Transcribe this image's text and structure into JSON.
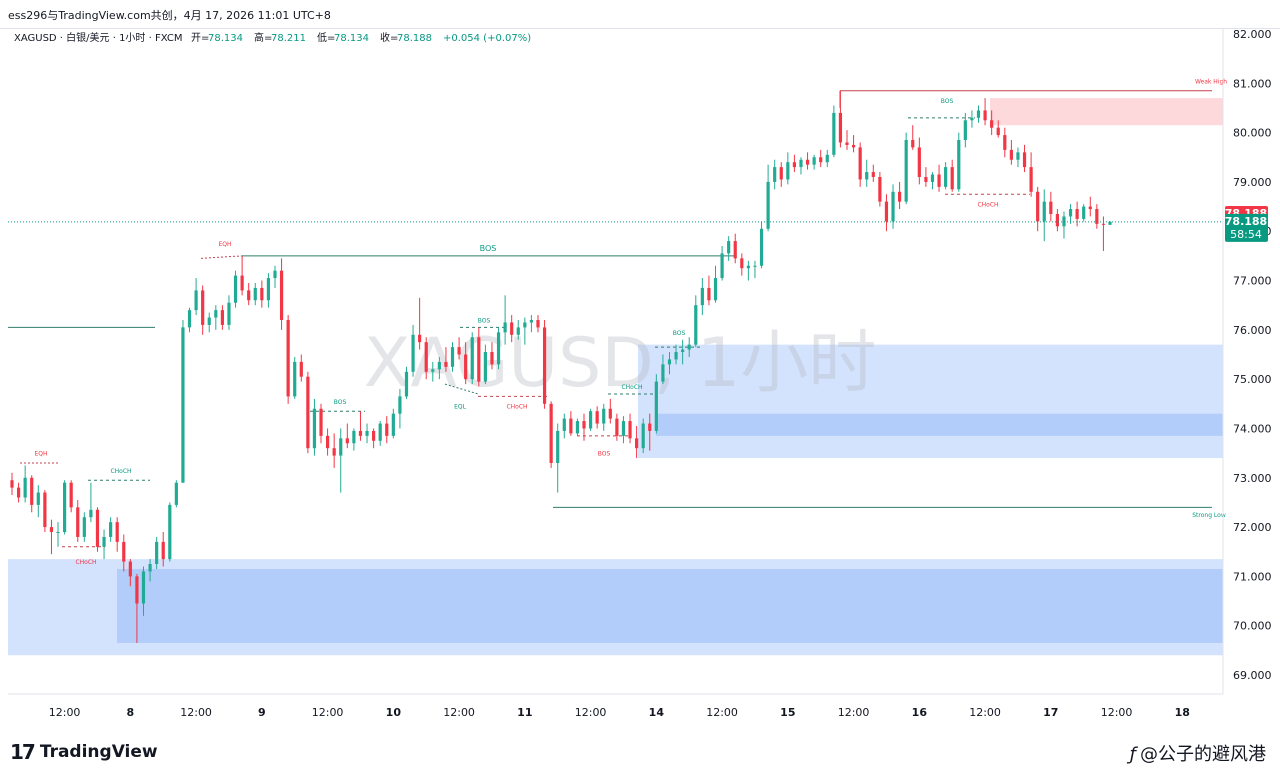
{
  "header": {
    "publish_line": "ess296与TradingView.com共创，4月 17, 2026 11:01 UTC+8",
    "symbol_line": "XAGUSD · 白银/美元 · 1小时 · FXCM",
    "ohlc": [
      {
        "label": "开=",
        "value": "78.134"
      },
      {
        "label": "高=",
        "value": "78.211"
      },
      {
        "label": "低=",
        "value": "78.134"
      },
      {
        "label": "收=",
        "value": "78.188"
      }
    ],
    "change": "+0.054 (+0.07%)"
  },
  "watermark": "XAGUSD, 1小时",
  "colors": {
    "up": "#22ab94",
    "down": "#f23645",
    "up_wick": "#22ab94",
    "down_wick": "#f23645",
    "bull_text": "#089981",
    "bear_text": "#f23645",
    "zone_light": "#d4e3fd",
    "zone_dark": "#b2cdf9",
    "supply": "#fdd9dc",
    "price_tag": "#f23645",
    "last_tag": "#089981"
  },
  "chart_data": {
    "type": "candlestick",
    "symbol": "XAGUSD",
    "timeframe": "1H",
    "ylim": [
      68.6,
      82.3
    ],
    "y_ticks": [
      "82.000",
      "81.000",
      "80.000",
      "79.000",
      "78.000",
      "77.000",
      "76.000",
      "75.000",
      "74.000",
      "73.000",
      "72.000",
      "71.000",
      "70.000",
      "69.000"
    ],
    "x_ticks": [
      {
        "label": "12:00",
        "t": 8
      },
      {
        "label": "8",
        "t": 18
      },
      {
        "label": "12:00",
        "t": 28
      },
      {
        "label": "9",
        "t": 38
      },
      {
        "label": "12:00",
        "t": 48
      },
      {
        "label": "10",
        "t": 58
      },
      {
        "label": "12:00",
        "t": 68
      },
      {
        "label": "11",
        "t": 78
      },
      {
        "label": "12:00",
        "t": 88
      },
      {
        "label": "14",
        "t": 98
      },
      {
        "label": "12:00",
        "t": 108
      },
      {
        "label": "15",
        "t": 118
      },
      {
        "label": "12:00",
        "t": 128
      },
      {
        "label": "16",
        "t": 138
      },
      {
        "label": "12:00",
        "t": 148
      },
      {
        "label": "17",
        "t": 158
      },
      {
        "label": "12:00",
        "t": 168
      },
      {
        "label": "18",
        "t": 178
      }
    ],
    "last_price": "78.188",
    "countdown": "58:54",
    "close_price": "78.188",
    "candles": [
      [
        72.95,
        73.1,
        72.65,
        72.8
      ],
      [
        72.8,
        72.9,
        72.5,
        72.6
      ],
      [
        72.6,
        73.25,
        72.5,
        73.0
      ],
      [
        73.0,
        73.05,
        72.3,
        72.45
      ],
      [
        72.45,
        72.85,
        72.2,
        72.7
      ],
      [
        72.7,
        72.75,
        71.9,
        72.0
      ],
      [
        72.0,
        72.15,
        71.45,
        71.9
      ],
      [
        71.9,
        72.1,
        71.6,
        71.9
      ],
      [
        71.9,
        72.95,
        71.85,
        72.9
      ],
      [
        72.9,
        72.95,
        72.3,
        72.4
      ],
      [
        72.4,
        72.55,
        71.7,
        71.8
      ],
      [
        71.8,
        72.3,
        71.7,
        72.2
      ],
      [
        72.2,
        72.9,
        72.1,
        72.35
      ],
      [
        72.35,
        72.4,
        71.5,
        71.6
      ],
      [
        71.6,
        71.95,
        71.35,
        71.8
      ],
      [
        71.8,
        72.2,
        71.7,
        72.1
      ],
      [
        72.1,
        72.2,
        71.5,
        71.7
      ],
      [
        71.7,
        71.85,
        71.1,
        71.3
      ],
      [
        71.3,
        71.35,
        70.8,
        71.0
      ],
      [
        71.0,
        71.05,
        69.65,
        70.45
      ],
      [
        70.45,
        71.2,
        70.2,
        71.1
      ],
      [
        71.1,
        71.35,
        70.9,
        71.25
      ],
      [
        71.25,
        71.8,
        71.15,
        71.7
      ],
      [
        71.7,
        71.9,
        71.2,
        71.35
      ],
      [
        71.35,
        72.5,
        71.3,
        72.45
      ],
      [
        72.45,
        72.95,
        72.4,
        72.9
      ],
      [
        72.9,
        76.2,
        72.9,
        76.05
      ],
      [
        76.05,
        76.45,
        75.95,
        76.4
      ],
      [
        76.4,
        77.05,
        76.3,
        76.8
      ],
      [
        76.8,
        76.9,
        75.9,
        76.1
      ],
      [
        76.1,
        76.35,
        75.95,
        76.25
      ],
      [
        76.25,
        76.5,
        76.0,
        76.4
      ],
      [
        76.4,
        76.5,
        76.0,
        76.1
      ],
      [
        76.1,
        76.7,
        76.0,
        76.55
      ],
      [
        76.55,
        77.2,
        76.45,
        77.1
      ],
      [
        77.1,
        77.5,
        76.7,
        76.8
      ],
      [
        76.8,
        76.95,
        76.5,
        76.6
      ],
      [
        76.6,
        76.95,
        76.5,
        76.85
      ],
      [
        76.85,
        77.0,
        76.45,
        76.6
      ],
      [
        76.6,
        77.15,
        76.45,
        77.05
      ],
      [
        77.05,
        77.3,
        76.85,
        77.2
      ],
      [
        77.2,
        77.45,
        76.0,
        76.2
      ],
      [
        76.2,
        76.3,
        74.5,
        74.65
      ],
      [
        74.65,
        75.45,
        74.6,
        75.35
      ],
      [
        75.35,
        75.5,
        74.95,
        75.05
      ],
      [
        75.05,
        75.15,
        73.5,
        73.6
      ],
      [
        73.6,
        74.6,
        73.45,
        74.4
      ],
      [
        74.4,
        74.5,
        73.7,
        73.85
      ],
      [
        73.85,
        74.0,
        73.45,
        73.6
      ],
      [
        73.6,
        73.9,
        73.2,
        73.45
      ],
      [
        73.45,
        74.0,
        72.7,
        73.8
      ],
      [
        73.8,
        74.1,
        73.6,
        73.7
      ],
      [
        73.7,
        74.0,
        73.55,
        73.95
      ],
      [
        73.95,
        74.35,
        73.75,
        73.85
      ],
      [
        73.85,
        74.1,
        73.7,
        73.95
      ],
      [
        73.95,
        74.0,
        73.6,
        73.75
      ],
      [
        73.75,
        74.15,
        73.65,
        74.1
      ],
      [
        74.1,
        74.25,
        73.7,
        73.85
      ],
      [
        73.85,
        74.4,
        73.8,
        74.3
      ],
      [
        74.3,
        74.8,
        74.0,
        74.65
      ],
      [
        74.65,
        75.25,
        74.6,
        75.15
      ],
      [
        75.15,
        76.1,
        75.05,
        75.9
      ],
      [
        75.9,
        76.65,
        75.6,
        75.75
      ],
      [
        75.75,
        75.85,
        75.0,
        75.15
      ],
      [
        75.15,
        75.35,
        74.95,
        75.2
      ],
      [
        75.2,
        75.45,
        75.0,
        75.35
      ],
      [
        75.35,
        75.65,
        75.15,
        75.25
      ],
      [
        75.25,
        75.75,
        75.15,
        75.65
      ],
      [
        75.65,
        75.85,
        75.4,
        75.5
      ],
      [
        75.5,
        75.75,
        74.9,
        75.0
      ],
      [
        75.0,
        75.95,
        74.9,
        75.85
      ],
      [
        75.85,
        76.05,
        74.85,
        74.95
      ],
      [
        74.95,
        75.7,
        74.9,
        75.55
      ],
      [
        75.55,
        75.75,
        75.2,
        75.3
      ],
      [
        75.3,
        76.05,
        75.2,
        75.95
      ],
      [
        75.95,
        76.7,
        75.7,
        76.15
      ],
      [
        76.15,
        76.3,
        75.75,
        75.9
      ],
      [
        75.9,
        76.2,
        75.8,
        76.05
      ],
      [
        76.05,
        76.25,
        75.7,
        76.15
      ],
      [
        76.15,
        76.3,
        75.95,
        76.2
      ],
      [
        76.2,
        76.3,
        75.95,
        76.05
      ],
      [
        76.05,
        76.2,
        74.4,
        74.5
      ],
      [
        74.5,
        74.55,
        73.2,
        73.3
      ],
      [
        73.3,
        74.1,
        72.7,
        73.95
      ],
      [
        73.95,
        74.3,
        73.8,
        74.2
      ],
      [
        74.2,
        74.35,
        73.85,
        73.9
      ],
      [
        73.9,
        74.2,
        73.85,
        74.15
      ],
      [
        74.15,
        74.3,
        73.75,
        74.0
      ],
      [
        74.0,
        74.4,
        73.95,
        74.35
      ],
      [
        74.35,
        74.45,
        74.0,
        74.1
      ],
      [
        74.1,
        74.5,
        73.95,
        74.4
      ],
      [
        74.4,
        74.6,
        74.1,
        74.2
      ],
      [
        74.2,
        74.3,
        73.75,
        73.85
      ],
      [
        73.85,
        74.25,
        73.7,
        74.15
      ],
      [
        74.15,
        74.3,
        73.7,
        73.8
      ],
      [
        73.8,
        74.05,
        73.4,
        73.6
      ],
      [
        73.6,
        74.2,
        73.5,
        74.1
      ],
      [
        74.1,
        74.3,
        73.55,
        73.95
      ],
      [
        73.95,
        75.1,
        73.9,
        74.95
      ],
      [
        74.95,
        75.5,
        74.9,
        75.3
      ],
      [
        75.3,
        75.55,
        75.1,
        75.4
      ],
      [
        75.4,
        75.7,
        75.3,
        75.55
      ],
      [
        75.55,
        75.8,
        75.3,
        75.6
      ],
      [
        75.6,
        75.85,
        75.45,
        75.7
      ],
      [
        75.7,
        76.7,
        75.65,
        76.5
      ],
      [
        76.5,
        77.05,
        76.3,
        76.85
      ],
      [
        76.85,
        77.1,
        76.5,
        76.6
      ],
      [
        76.6,
        77.3,
        76.55,
        77.05
      ],
      [
        77.05,
        77.7,
        77.0,
        77.55
      ],
      [
        77.55,
        77.9,
        77.4,
        77.8
      ],
      [
        77.8,
        77.95,
        77.35,
        77.45
      ],
      [
        77.45,
        77.55,
        77.1,
        77.25
      ],
      [
        77.25,
        77.4,
        77.0,
        77.3
      ],
      [
        77.3,
        77.4,
        77.05,
        77.3
      ],
      [
        77.3,
        78.2,
        77.25,
        78.05
      ],
      [
        78.05,
        79.35,
        78.0,
        79.0
      ],
      [
        79.0,
        79.45,
        78.85,
        79.3
      ],
      [
        79.3,
        79.4,
        78.9,
        79.05
      ],
      [
        79.05,
        79.6,
        78.95,
        79.4
      ],
      [
        79.4,
        79.55,
        79.2,
        79.3
      ],
      [
        79.3,
        79.5,
        79.15,
        79.45
      ],
      [
        79.45,
        79.6,
        79.25,
        79.35
      ],
      [
        79.35,
        79.55,
        79.25,
        79.5
      ],
      [
        79.5,
        79.65,
        79.3,
        79.4
      ],
      [
        79.4,
        79.65,
        79.3,
        79.55
      ],
      [
        79.55,
        80.55,
        79.5,
        80.4
      ],
      [
        80.4,
        80.85,
        79.7,
        79.8
      ],
      [
        79.8,
        80.05,
        79.65,
        79.75
      ],
      [
        79.75,
        79.95,
        79.6,
        79.7
      ],
      [
        79.7,
        79.8,
        78.9,
        79.05
      ],
      [
        79.05,
        79.45,
        78.9,
        79.2
      ],
      [
        79.2,
        79.35,
        79.0,
        79.1
      ],
      [
        79.1,
        79.2,
        78.5,
        78.6
      ],
      [
        78.6,
        78.75,
        78.0,
        78.2
      ],
      [
        78.2,
        78.95,
        78.05,
        78.8
      ],
      [
        78.8,
        79.0,
        78.45,
        78.6
      ],
      [
        78.6,
        80.0,
        78.55,
        79.85
      ],
      [
        79.85,
        80.15,
        79.65,
        79.7
      ],
      [
        79.7,
        79.9,
        78.95,
        79.1
      ],
      [
        79.1,
        79.3,
        78.9,
        79.0
      ],
      [
        79.0,
        79.2,
        78.85,
        79.15
      ],
      [
        79.15,
        79.35,
        78.8,
        78.9
      ],
      [
        78.9,
        79.4,
        78.85,
        79.3
      ],
      [
        79.3,
        79.45,
        78.8,
        78.85
      ],
      [
        78.85,
        80.0,
        78.8,
        79.85
      ],
      [
        79.85,
        80.4,
        79.7,
        80.25
      ],
      [
        80.25,
        80.45,
        80.1,
        80.3
      ],
      [
        80.3,
        80.55,
        80.2,
        80.45
      ],
      [
        80.45,
        80.7,
        80.15,
        80.25
      ],
      [
        80.25,
        80.45,
        79.95,
        80.1
      ],
      [
        80.1,
        80.25,
        79.9,
        79.95
      ],
      [
        79.95,
        80.1,
        79.5,
        79.65
      ],
      [
        79.65,
        79.85,
        79.35,
        79.45
      ],
      [
        79.45,
        79.7,
        79.3,
        79.6
      ],
      [
        79.6,
        79.75,
        79.2,
        79.3
      ],
      [
        79.3,
        79.6,
        78.7,
        78.8
      ],
      [
        78.8,
        78.9,
        78.0,
        78.2
      ],
      [
        78.2,
        78.85,
        77.8,
        78.6
      ],
      [
        78.6,
        78.8,
        78.2,
        78.35
      ],
      [
        78.35,
        78.45,
        78.0,
        78.1
      ],
      [
        78.1,
        78.4,
        77.85,
        78.3
      ],
      [
        78.3,
        78.55,
        78.15,
        78.45
      ],
      [
        78.45,
        78.6,
        78.1,
        78.25
      ],
      [
        78.25,
        78.55,
        78.2,
        78.5
      ],
      [
        78.5,
        78.7,
        78.3,
        78.45
      ],
      [
        78.45,
        78.55,
        78.05,
        78.15
      ],
      [
        78.15,
        78.3,
        77.6,
        78.13
      ],
      [
        78.13,
        78.21,
        78.13,
        78.19
      ]
    ],
    "annotations": [
      {
        "text": "EQH",
        "kind": "bear"
      },
      {
        "text": "CHoCH",
        "kind": "bear"
      },
      {
        "text": "CHoCH",
        "kind": "bull"
      },
      {
        "text": "EQH",
        "kind": "bear"
      },
      {
        "text": "BOS",
        "kind": "bull"
      },
      {
        "text": "BOS",
        "kind": "bull"
      },
      {
        "text": "BOS",
        "kind": "bull"
      },
      {
        "text": "EQL",
        "kind": "bull"
      },
      {
        "text": "CHoCH",
        "kind": "bear"
      },
      {
        "text": "BOS",
        "kind": "bear"
      },
      {
        "text": "CHoCH",
        "kind": "bull"
      },
      {
        "text": "BOS",
        "kind": "bull"
      },
      {
        "text": "BOS",
        "kind": "bull"
      },
      {
        "text": "CHoCH",
        "kind": "bear"
      },
      {
        "text": "Weak High",
        "kind": "bear"
      },
      {
        "text": "Strong Low",
        "kind": "bull"
      }
    ]
  },
  "footer": {
    "logo_mark": "17",
    "logo_text": "TradingView",
    "credit": "@公子的避风港"
  }
}
